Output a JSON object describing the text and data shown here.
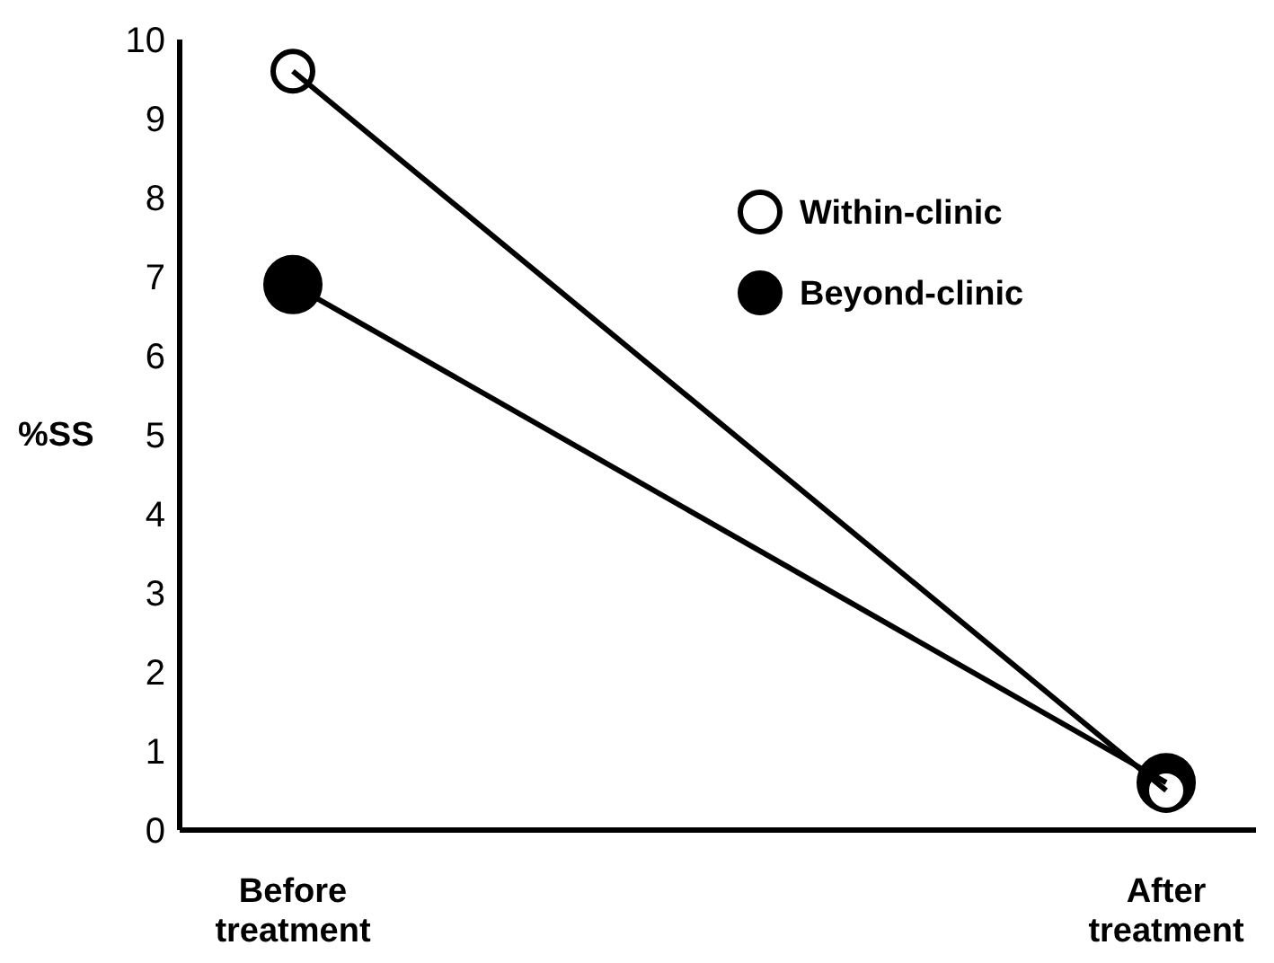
{
  "chart_data": {
    "type": "line",
    "ylabel": "%SS",
    "categories": [
      "Before\ntreatment",
      "After\ntreatment"
    ],
    "ylim": [
      0,
      10
    ],
    "yticks": [
      0,
      1,
      2,
      3,
      4,
      5,
      6,
      7,
      8,
      9,
      10
    ],
    "marker": "circle",
    "legend": "top right",
    "grid": false,
    "series": [
      {
        "name": "Within-clinic",
        "color": "#ffffff",
        "values": [
          9.6,
          0.5
        ]
      },
      {
        "name": "Beyond-clinic",
        "color": "#000000",
        "values": [
          6.9,
          0.6
        ]
      }
    ]
  }
}
